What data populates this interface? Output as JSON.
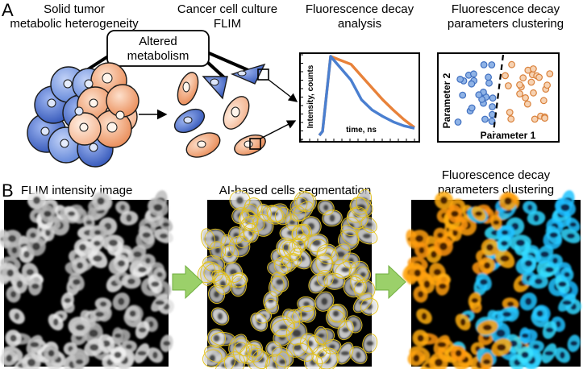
{
  "panel_a": {
    "letter": "A",
    "headings": {
      "tumor": [
        "Solid tumor",
        "metabolic heterogeneity"
      ],
      "culture": [
        "Cancer cell culture",
        "FLIM"
      ],
      "decay": [
        "Fluorescence decay",
        "analysis"
      ],
      "clustering": [
        "Fluorescence decay",
        "parameters clustering"
      ]
    },
    "altered_box": [
      "Altered",
      "metabolism"
    ],
    "decay_plot": {
      "ylabel": "Intensity, counts",
      "xlabel": "time, ns"
    },
    "scatter_plot": {
      "xlabel": "Parameter 1",
      "ylabel": "Parameter 2"
    }
  },
  "panel_b": {
    "letter": "B",
    "headings": {
      "intensity": "FLIM intensity image",
      "segmentation": "AI-based cells segmentation",
      "clustering": [
        "Fluorescence decay",
        "parameters clustering"
      ]
    }
  },
  "colors": {
    "blue_cell": "#3f66c8",
    "orange_cell": "#ef9a6a",
    "decay_orange": "#e8823a",
    "decay_blue": "#4a7fd0",
    "segmentation_outline": "#e3c21a",
    "cluster_blue": "#2f8fe0",
    "cluster_orange": "#e8861e",
    "arrow_green": "#9bd06a"
  },
  "chart_data": {
    "type": "line",
    "xlabel": "time, ns",
    "ylabel": "Intensity, counts",
    "series": [
      {
        "values": [
          0,
          0.05,
          1.0,
          0.9,
          0.75,
          0.6,
          0.45,
          0.32,
          0.2,
          0.1
        ]
      },
      {
        "values": [
          0,
          0.05,
          1.0,
          0.7,
          0.45,
          0.32,
          0.24,
          0.17,
          0.12,
          0.09
        ]
      }
    ]
  }
}
